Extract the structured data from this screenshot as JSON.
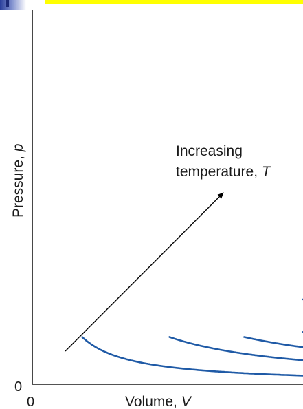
{
  "header": {
    "bar_color": "#ffff00",
    "mark_color": "#2a3f9c"
  },
  "chart_data": {
    "type": "line",
    "xlabel_text": "Volume, ",
    "xlabel_symbol": "V",
    "ylabel_text": "Pressure, ",
    "ylabel_symbol": "p",
    "x_origin": "0",
    "y_origin": "0",
    "annotation_line1": "Increasing",
    "annotation_line2_text": "temperature, ",
    "annotation_line2_symbol": "T",
    "curve_color": "#1f5aa6",
    "arrow_color": "#000000",
    "isotherms_pV": [
      0.2,
      0.55,
      0.85,
      1.2,
      1.95
    ]
  }
}
